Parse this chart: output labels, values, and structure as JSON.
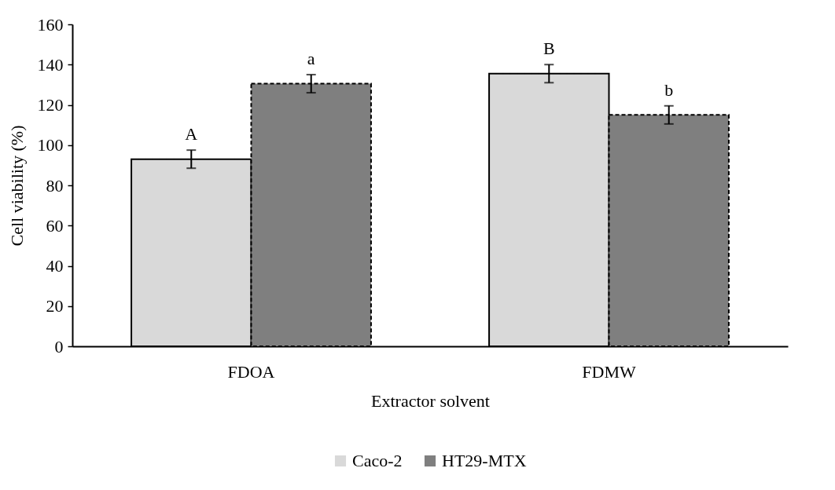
{
  "chart_data": {
    "type": "bar",
    "xlabel": "Extractor solvent",
    "ylabel": "Cell viability (%)",
    "categories": [
      "FDOA",
      "FDMW"
    ],
    "series": [
      {
        "name": "Caco-2",
        "color": "#d9d9d9",
        "line_style": "solid",
        "values": [
          93,
          135.5
        ],
        "errors": [
          4.5,
          4.5
        ]
      },
      {
        "name": "HT29-MTX",
        "color": "#7f7f7f",
        "line_style": "dashed",
        "values": [
          130.5,
          115
        ],
        "errors": [
          4.5,
          4.5
        ]
      }
    ],
    "ylim": [
      0,
      160
    ],
    "yticks": [
      0,
      20,
      40,
      60,
      80,
      100,
      120,
      140,
      160
    ],
    "grid": false,
    "legend": "bottom",
    "annotations": [
      "A",
      "a",
      "B",
      "b"
    ]
  }
}
